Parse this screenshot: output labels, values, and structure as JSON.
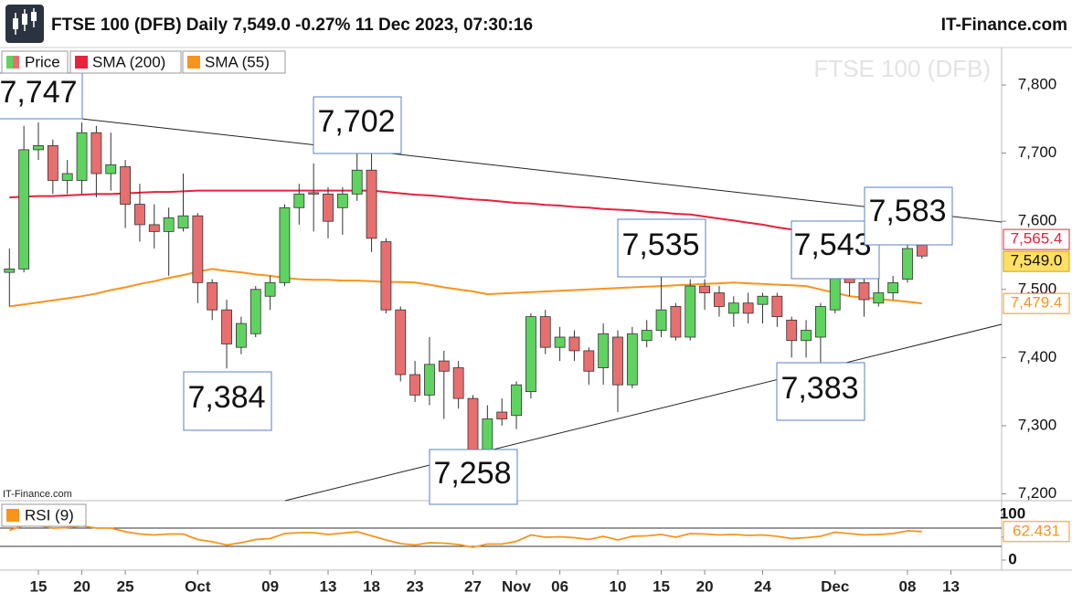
{
  "chart_data": [
    {
      "type": "candlestick",
      "title": "FTSE 100 (DFB) Daily 7,549.0 -0.27% 11 Dec 2023, 07:30:16",
      "source": "IT-Finance.com",
      "watermark": "FTSE 100 (DFB)",
      "categories": [
        null,
        null,
        "15",
        null,
        null,
        "20",
        null,
        null,
        "25",
        null,
        null,
        null,
        null,
        "Oct",
        null,
        null,
        null,
        null,
        "09",
        null,
        null,
        null,
        "13",
        null,
        null,
        "18",
        null,
        null,
        "23",
        null,
        null,
        null,
        "27",
        null,
        null,
        "Nov",
        null,
        null,
        "06",
        null,
        null,
        null,
        "10",
        null,
        null,
        "15",
        null,
        null,
        "20",
        null,
        null,
        null,
        "24",
        null,
        null,
        null,
        null,
        "Dec",
        null,
        null,
        null,
        null,
        "08",
        null,
        null,
        "13",
        null,
        null
      ],
      "price": {
        "name": "Price",
        "up_color": "#5fd35f",
        "down_color": "#e86f6f",
        "label_color": "#ffe066",
        "open": [
          7525,
          7530,
          7705,
          7711,
          7660,
          7660,
          7730,
          7670,
          7680,
          7625,
          7595,
          7585,
          7590,
          7608,
          7510,
          7470,
          7415,
          7435,
          7490,
          7510,
          7620,
          7642,
          7640,
          7620,
          7640,
          7675,
          7570,
          7470,
          7375,
          7345,
          7395,
          7385,
          7340,
          7265,
          7320,
          7315,
          7350,
          7460,
          7415,
          7430,
          7410,
          7385,
          7430,
          7360,
          7425,
          7440,
          7475,
          7430,
          7505,
          7495,
          7465,
          7480,
          7478,
          7490,
          7455,
          7425,
          7430,
          7470,
          7530,
          7510,
          7480,
          7495,
          7515,
          7565,
          null,
          null,
          null,
          null
        ],
        "high": [
          7560,
          7740,
          7745,
          7720,
          7690,
          7745,
          7740,
          7730,
          7690,
          7655,
          7625,
          7620,
          7670,
          7612,
          7515,
          7485,
          7460,
          7505,
          7520,
          7625,
          7655,
          7685,
          7650,
          7650,
          7702,
          7702,
          7575,
          7475,
          7395,
          7430,
          7410,
          7395,
          7345,
          7330,
          7340,
          7365,
          7465,
          7470,
          7445,
          7440,
          7415,
          7450,
          7440,
          7445,
          7455,
          7535,
          7480,
          7515,
          7515,
          7505,
          7490,
          7495,
          7495,
          7495,
          7460,
          7455,
          7480,
          7543,
          7540,
          7520,
          7530,
          7520,
          7583,
          7570,
          null,
          null,
          null,
          null
        ],
        "low": [
          7475,
          7525,
          7690,
          7640,
          7640,
          7640,
          7635,
          7645,
          7590,
          7570,
          7560,
          7520,
          7585,
          7480,
          7455,
          7384,
          7405,
          7430,
          7470,
          7505,
          7595,
          7585,
          7575,
          7580,
          7630,
          7555,
          7465,
          7365,
          7335,
          7330,
          7310,
          7325,
          7258,
          7262,
          7300,
          7295,
          7340,
          7405,
          7395,
          7395,
          7360,
          7360,
          7320,
          7355,
          7415,
          7430,
          7425,
          7425,
          7470,
          7460,
          7445,
          7450,
          7450,
          7445,
          7400,
          7400,
          7383,
          7465,
          7490,
          7460,
          7475,
          7485,
          7510,
          7545,
          null,
          null,
          null,
          null
        ],
        "close": [
          7530,
          7705,
          7711,
          7660,
          7670,
          7730,
          7670,
          7683,
          7625,
          7595,
          7585,
          7605,
          7608,
          7510,
          7470,
          7420,
          7450,
          7500,
          7510,
          7620,
          7640,
          7640,
          7600,
          7640,
          7675,
          7575,
          7470,
          7375,
          7345,
          7390,
          7380,
          7340,
          7260,
          7310,
          7310,
          7360,
          7460,
          7415,
          7430,
          7410,
          7380,
          7435,
          7360,
          7435,
          7440,
          7470,
          7430,
          7505,
          7495,
          7475,
          7480,
          7465,
          7490,
          7460,
          7425,
          7440,
          7475,
          7530,
          7510,
          7485,
          7495,
          7510,
          7560,
          7549,
          null,
          null,
          null,
          null
        ],
        "value_labels": [
          null,
          null,
          null,
          null,
          null,
          null,
          null,
          null,
          null,
          null,
          null,
          null,
          null,
          null,
          null,
          null,
          null,
          null,
          null,
          null,
          null,
          null,
          null,
          null,
          null,
          null,
          null,
          null,
          null,
          null,
          null,
          null,
          null,
          null,
          null,
          null,
          null,
          null,
          null,
          null,
          null,
          null,
          null,
          null,
          null,
          null,
          null,
          null,
          null,
          null,
          null,
          null,
          null,
          null,
          null,
          null,
          null,
          null,
          null,
          null,
          null,
          null,
          null,
          "7,549.0",
          null,
          null,
          null,
          null
        ]
      },
      "series": [
        {
          "name": "SMA (200)",
          "color": "#e8213f",
          "values": [
            7635,
            7636,
            7637,
            7637,
            7638,
            7639,
            7640,
            7640,
            7641,
            7642,
            7643,
            7643,
            7644,
            7645,
            7645,
            7645,
            7645,
            7645,
            7645,
            7645,
            7645,
            7645,
            7645,
            7645,
            7645,
            7645,
            7643,
            7641,
            7639,
            7638,
            7636,
            7634,
            7632,
            7631,
            7629,
            7627,
            7626,
            7624,
            7623,
            7621,
            7620,
            7618,
            7617,
            7616,
            7614,
            7613,
            7611,
            7610,
            7607,
            7604,
            7601,
            7598,
            7595,
            7591,
            7588,
            7585,
            7583,
            7580,
            7578,
            7575,
            7573,
            7570,
            7568,
            7565.4,
            null,
            null,
            null,
            null
          ],
          "value_labels": [
            null,
            null,
            null,
            null,
            null,
            null,
            null,
            null,
            null,
            null,
            null,
            null,
            null,
            null,
            null,
            null,
            null,
            null,
            null,
            null,
            null,
            null,
            null,
            null,
            null,
            null,
            null,
            null,
            null,
            null,
            null,
            null,
            null,
            null,
            null,
            null,
            null,
            null,
            null,
            null,
            null,
            null,
            null,
            null,
            null,
            null,
            null,
            null,
            null,
            null,
            null,
            null,
            null,
            null,
            null,
            null,
            null,
            null,
            null,
            null,
            null,
            null,
            null,
            "7,565.4",
            null,
            null,
            null,
            null
          ]
        },
        {
          "name": "SMA (55)",
          "color": "#f7941d",
          "values": [
            7475,
            7478,
            7481,
            7484,
            7487,
            7490,
            7494,
            7499,
            7503,
            7508,
            7512,
            7517,
            7521,
            7526,
            7530,
            7527,
            7525,
            7522,
            7520,
            7517,
            7515,
            7514,
            7514,
            7513,
            7513,
            7512,
            7511,
            7511,
            7510,
            7507,
            7503,
            7500,
            7497,
            7493,
            7494,
            7495,
            7496,
            7497,
            7498,
            7499,
            7500,
            7501,
            7502,
            7503,
            7504,
            7505,
            7506,
            7507,
            7508,
            7509,
            7510,
            7509,
            7508,
            7507,
            7506,
            7505,
            7500,
            7495,
            7490,
            7488,
            7486,
            7484,
            7482,
            7479.4,
            null,
            null,
            null,
            null
          ],
          "value_labels": [
            null,
            null,
            null,
            null,
            null,
            null,
            null,
            null,
            null,
            null,
            null,
            null,
            null,
            null,
            null,
            null,
            null,
            null,
            null,
            null,
            null,
            null,
            null,
            null,
            null,
            null,
            null,
            null,
            null,
            null,
            null,
            null,
            null,
            null,
            null,
            null,
            null,
            null,
            null,
            null,
            null,
            null,
            null,
            null,
            null,
            null,
            null,
            null,
            null,
            null,
            null,
            null,
            null,
            null,
            null,
            null,
            null,
            null,
            null,
            null,
            null,
            null,
            null,
            "7,479.4",
            null,
            null,
            null,
            null
          ]
        }
      ],
      "ylim": [
        7190,
        7855
      ],
      "yticks": [
        {
          "value": 7200,
          "label": "7,200"
        },
        {
          "value": 7300,
          "label": "7,300"
        },
        {
          "value": 7400,
          "label": "7,400"
        },
        {
          "value": 7500,
          "label": "7,500"
        },
        {
          "value": 7600,
          "label": "7,600"
        },
        {
          "value": 7700,
          "label": "7,700"
        },
        {
          "value": 7800,
          "label": "7,800"
        }
      ],
      "annotations": [
        "7,747",
        "7,702",
        "7,384",
        "7,258",
        "7,535",
        "7,543",
        "7,583",
        "7,383"
      ]
    },
    {
      "type": "line",
      "series": [
        {
          "name": "RSI (9)",
          "color": "#f7941d",
          "values": [
            65,
            76,
            76,
            70,
            71,
            75,
            70,
            70,
            62,
            57,
            55,
            57,
            57,
            45,
            40,
            33,
            38,
            45,
            47,
            58,
            60,
            60,
            56,
            59,
            62,
            53,
            44,
            36,
            33,
            38,
            37,
            34,
            28,
            35,
            35,
            41,
            55,
            50,
            51,
            49,
            45,
            52,
            44,
            52,
            53,
            56,
            50,
            58,
            57,
            55,
            56,
            54,
            55,
            52,
            47,
            49,
            52,
            61,
            58,
            55,
            56,
            58,
            64,
            62.431,
            null,
            null,
            null,
            null
          ]
        }
      ],
      "ylim": [
        -18,
        120
      ],
      "yticks": [
        0,
        50,
        100
      ],
      "levels": [
        70,
        30
      ]
    }
  ]
}
